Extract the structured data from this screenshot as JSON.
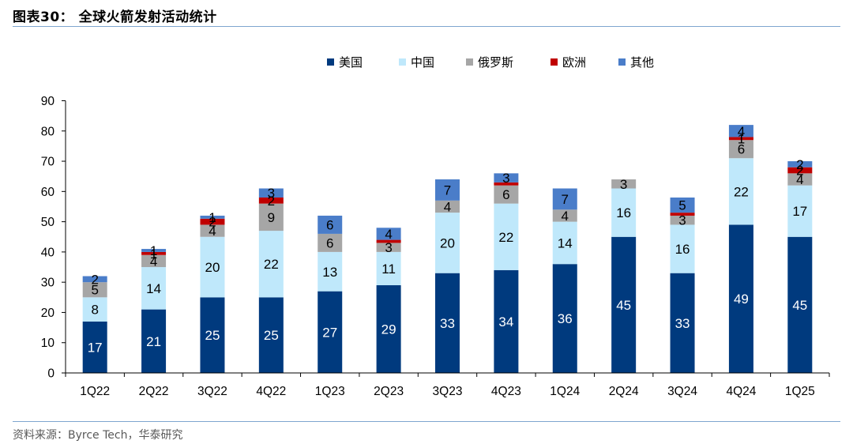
{
  "header": {
    "title": "图表30： 全球火箭发射活动统计"
  },
  "footer": {
    "source": "资料来源：Byrce Tech，华泰研究"
  },
  "chart_data": {
    "type": "bar",
    "stacked": true,
    "categories": [
      "1Q22",
      "2Q22",
      "3Q22",
      "4Q22",
      "1Q23",
      "2Q23",
      "3Q23",
      "4Q23",
      "1Q24",
      "2Q24",
      "3Q24",
      "4Q24",
      "1Q25"
    ],
    "series": [
      {
        "name": "美国",
        "color": "#003a7e",
        "label_color": "#ffffff",
        "values": [
          17,
          21,
          25,
          25,
          27,
          29,
          33,
          34,
          36,
          45,
          33,
          49,
          45
        ]
      },
      {
        "name": "中国",
        "color": "#bfe8fb",
        "label_color": "#000000",
        "values": [
          8,
          14,
          20,
          22,
          13,
          11,
          20,
          22,
          14,
          16,
          16,
          22,
          17
        ]
      },
      {
        "name": "俄罗斯",
        "color": "#a6a6a6",
        "label_color": "#000000",
        "values": [
          5,
          4,
          4,
          9,
          6,
          3,
          4,
          6,
          4,
          3,
          3,
          6,
          4
        ]
      },
      {
        "name": "欧洲",
        "color": "#c00000",
        "label_color": "#000000",
        "values": [
          0,
          1,
          2,
          2,
          0,
          1,
          0,
          1,
          0,
          0,
          1,
          1,
          2
        ]
      },
      {
        "name": "其他",
        "color": "#4a7dc9",
        "label_color": "#000000",
        "values": [
          2,
          1,
          1,
          3,
          6,
          4,
          7,
          3,
          7,
          0,
          5,
          4,
          2
        ]
      }
    ],
    "label_overrides": [
      {
        "category": "3Q22",
        "series": "其他",
        "text": "1"
      },
      {
        "category": "4Q22",
        "series": "欧洲",
        "text": "2"
      },
      {
        "category": "2Q23",
        "series": "欧洲",
        "text": ""
      },
      {
        "category": "4Q23",
        "series": "欧洲",
        "text": ""
      },
      {
        "category": "3Q24",
        "series": "欧洲",
        "text": ""
      },
      {
        "category": "4Q24",
        "series": "欧洲",
        "text": "1"
      }
    ],
    "y_ticks": [
      "0",
      "10",
      "20",
      "30",
      "40",
      "50",
      "60",
      "70",
      "80",
      "90"
    ],
    "ylim": [
      0,
      90
    ],
    "legend_position": "top-right",
    "grid": false
  }
}
